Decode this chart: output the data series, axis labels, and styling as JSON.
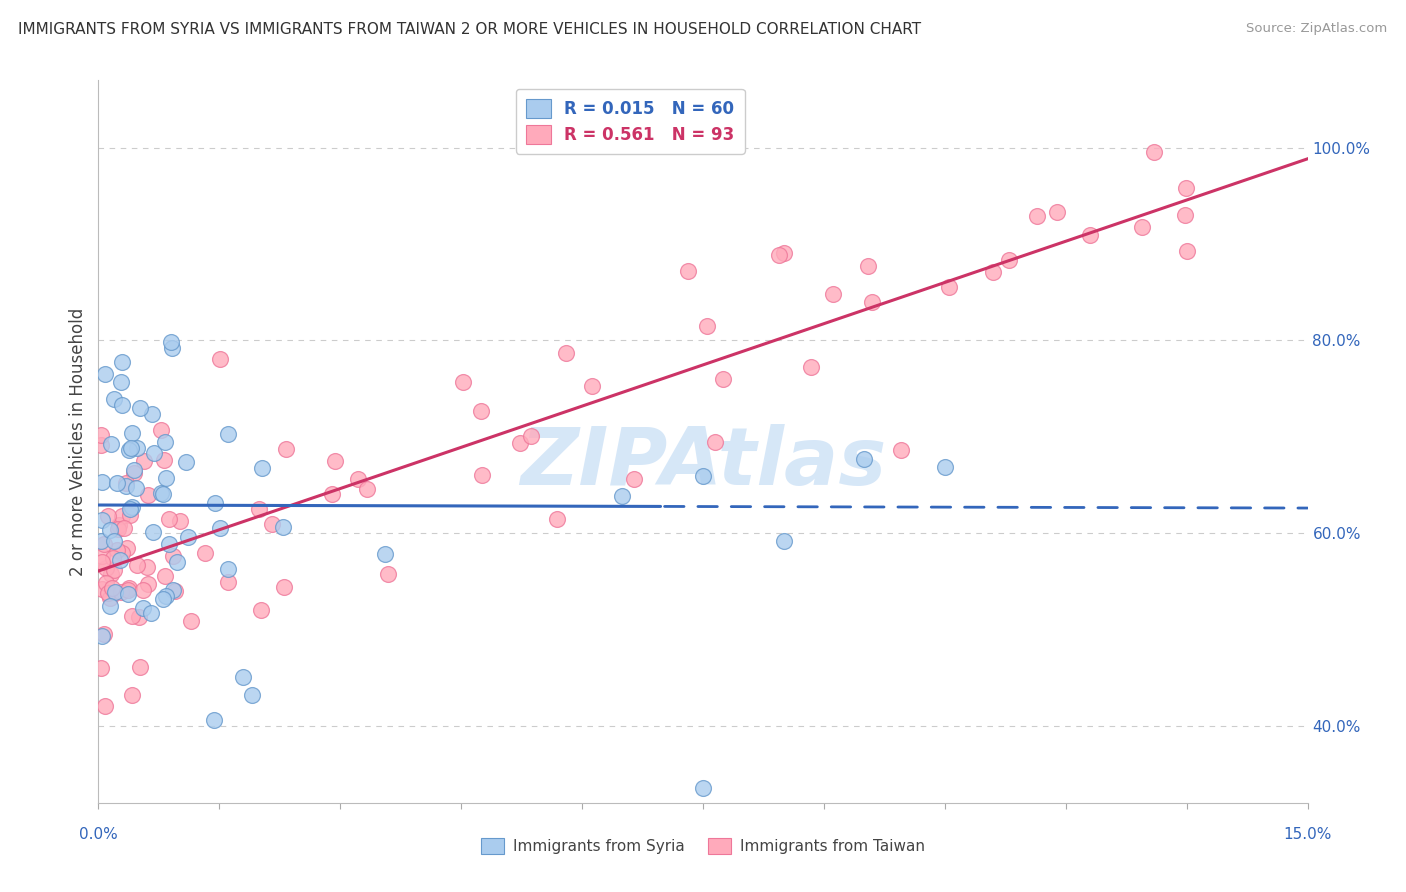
{
  "title": "IMMIGRANTS FROM SYRIA VS IMMIGRANTS FROM TAIWAN 2 OR MORE VEHICLES IN HOUSEHOLD CORRELATION CHART",
  "source": "Source: ZipAtlas.com",
  "ylabel": "2 or more Vehicles in Household",
  "right_ytick_labels": [
    "40.0%",
    "60.0%",
    "80.0%",
    "100.0%"
  ],
  "right_ytick_vals": [
    0.4,
    0.6,
    0.8,
    1.0
  ],
  "xlim": [
    0.0,
    15.0
  ],
  "ylim": [
    0.32,
    1.07
  ],
  "legend1_r": "R = 0.015",
  "legend1_n": "N = 60",
  "legend2_r": "R = 0.561",
  "legend2_n": "N = 93",
  "color_syria_fill": "#aaccee",
  "color_syria_edge": "#6699cc",
  "color_taiwan_fill": "#ffaabb",
  "color_taiwan_edge": "#ee7799",
  "color_syria_line": "#3366bb",
  "color_taiwan_line": "#cc3366",
  "color_grid": "#cccccc",
  "color_blue_text": "#3366bb",
  "color_pink_text": "#cc3366",
  "watermark_text": "ZIPAtlas",
  "watermark_color": "#c5ddf5",
  "dot_size": 130,
  "syria_line_solid_end": 7.0,
  "note_bottom_left": "0.0%",
  "note_bottom_right": "15.0%"
}
